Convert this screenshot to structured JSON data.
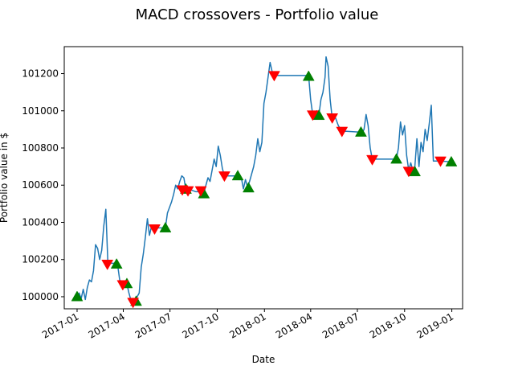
{
  "chart_data": {
    "type": "line",
    "title": "MACD crossovers - Portfolio value",
    "xlabel": "Date",
    "ylabel": "Portfolio value in $",
    "xlim": [
      "2016-12-07",
      "2019-01-22"
    ],
    "ylim": [
      99935,
      101345
    ],
    "grid": false,
    "x_ticks": [
      "2017-01-01",
      "2017-04-01",
      "2017-07-01",
      "2017-10-01",
      "2018-01-01",
      "2018-04-01",
      "2018-07-01",
      "2018-10-01",
      "2019-01-01"
    ],
    "x_tick_labels": [
      "2017-01",
      "2017-04",
      "2017-07",
      "2017-10",
      "2018-01",
      "2018-04",
      "2018-07",
      "2018-10",
      "2019-01"
    ],
    "y_ticks": [
      100000,
      100200,
      100400,
      100600,
      100800,
      101000,
      101200
    ],
    "y_tick_labels": [
      "100000",
      "100200",
      "100400",
      "100600",
      "100800",
      "101000",
      "101200"
    ],
    "series": [
      {
        "color": "#1f77b4",
        "points": [
          [
            "2017-01-01",
            100000
          ],
          [
            "2017-01-05",
            100020
          ],
          [
            "2017-01-09",
            99990
          ],
          [
            "2017-01-13",
            100040
          ],
          [
            "2017-01-17",
            99985
          ],
          [
            "2017-01-21",
            100050
          ],
          [
            "2017-01-25",
            100090
          ],
          [
            "2017-01-29",
            100080
          ],
          [
            "2017-02-02",
            100140
          ],
          [
            "2017-02-06",
            100280
          ],
          [
            "2017-02-10",
            100260
          ],
          [
            "2017-02-14",
            100200
          ],
          [
            "2017-02-18",
            100250
          ],
          [
            "2017-02-22",
            100380
          ],
          [
            "2017-02-26",
            100470
          ],
          [
            "2017-03-02",
            100180
          ],
          [
            "2017-03-10",
            100180
          ],
          [
            "2017-03-19",
            100180
          ],
          [
            "2017-03-21",
            100170
          ],
          [
            "2017-03-25",
            100090
          ],
          [
            "2017-03-31",
            100070
          ],
          [
            "2017-04-08",
            100070
          ],
          [
            "2017-04-12",
            100020
          ],
          [
            "2017-04-16",
            99980
          ],
          [
            "2017-04-20",
            99975
          ],
          [
            "2017-04-26",
            99975
          ],
          [
            "2017-04-28",
            100000
          ],
          [
            "2017-05-02",
            100020
          ],
          [
            "2017-05-06",
            100160
          ],
          [
            "2017-05-10",
            100230
          ],
          [
            "2017-05-14",
            100320
          ],
          [
            "2017-05-18",
            100420
          ],
          [
            "2017-05-22",
            100330
          ],
          [
            "2017-05-26",
            100380
          ],
          [
            "2017-06-01",
            100370
          ],
          [
            "2017-06-14",
            100370
          ],
          [
            "2017-06-22",
            100370
          ],
          [
            "2017-06-26",
            100450
          ],
          [
            "2017-06-30",
            100480
          ],
          [
            "2017-07-04",
            100510
          ],
          [
            "2017-07-08",
            100550
          ],
          [
            "2017-07-12",
            100600
          ],
          [
            "2017-07-16",
            100580
          ],
          [
            "2017-07-20",
            100620
          ],
          [
            "2017-07-24",
            100650
          ],
          [
            "2017-07-28",
            100640
          ],
          [
            "2017-08-01",
            100575
          ],
          [
            "2017-08-10",
            100575
          ],
          [
            "2017-08-20",
            100565
          ],
          [
            "2017-09-01",
            100565
          ],
          [
            "2017-09-05",
            100555
          ],
          [
            "2017-09-09",
            100600
          ],
          [
            "2017-09-13",
            100640
          ],
          [
            "2017-09-17",
            100620
          ],
          [
            "2017-09-21",
            100680
          ],
          [
            "2017-09-25",
            100740
          ],
          [
            "2017-09-29",
            100700
          ],
          [
            "2017-10-03",
            100810
          ],
          [
            "2017-10-07",
            100760
          ],
          [
            "2017-10-11",
            100690
          ],
          [
            "2017-10-15",
            100650
          ],
          [
            "2017-11-01",
            100650
          ],
          [
            "2017-11-10",
            100650
          ],
          [
            "2017-11-13",
            100630
          ],
          [
            "2017-11-17",
            100640
          ],
          [
            "2017-11-21",
            100580
          ],
          [
            "2017-11-25",
            100630
          ],
          [
            "2017-11-29",
            100590
          ],
          [
            "2017-12-03",
            100620
          ],
          [
            "2017-12-07",
            100660
          ],
          [
            "2017-12-11",
            100700
          ],
          [
            "2017-12-15",
            100760
          ],
          [
            "2017-12-19",
            100850
          ],
          [
            "2017-12-23",
            100780
          ],
          [
            "2017-12-27",
            100830
          ],
          [
            "2017-12-31",
            101040
          ],
          [
            "2018-01-04",
            101100
          ],
          [
            "2018-01-08",
            101180
          ],
          [
            "2018-01-12",
            101260
          ],
          [
            "2018-01-16",
            101210
          ],
          [
            "2018-01-20",
            101190
          ],
          [
            "2018-03-28",
            101190
          ],
          [
            "2018-04-01",
            101060
          ],
          [
            "2018-04-05",
            100980
          ],
          [
            "2018-04-09",
            100975
          ],
          [
            "2018-04-13",
            101000
          ],
          [
            "2018-04-17",
            100975
          ],
          [
            "2018-04-21",
            101060
          ],
          [
            "2018-04-25",
            101100
          ],
          [
            "2018-04-29",
            101180
          ],
          [
            "2018-05-01",
            101290
          ],
          [
            "2018-05-05",
            101240
          ],
          [
            "2018-05-09",
            101060
          ],
          [
            "2018-05-13",
            100960
          ],
          [
            "2018-05-19",
            100965
          ],
          [
            "2018-05-25",
            100920
          ],
          [
            "2018-06-01",
            100890
          ],
          [
            "2018-06-10",
            100890
          ],
          [
            "2018-07-08",
            100885
          ],
          [
            "2018-07-10",
            100880
          ],
          [
            "2018-07-14",
            100900
          ],
          [
            "2018-07-18",
            100980
          ],
          [
            "2018-07-22",
            100920
          ],
          [
            "2018-07-26",
            100800
          ],
          [
            "2018-07-30",
            100740
          ],
          [
            "2018-08-10",
            100740
          ],
          [
            "2018-09-01",
            100740
          ],
          [
            "2018-09-15",
            100740
          ],
          [
            "2018-09-19",
            100800
          ],
          [
            "2018-09-23",
            100940
          ],
          [
            "2018-09-27",
            100870
          ],
          [
            "2018-10-01",
            100920
          ],
          [
            "2018-10-05",
            100760
          ],
          [
            "2018-10-09",
            100680
          ],
          [
            "2018-10-13",
            100720
          ],
          [
            "2018-10-17",
            100680
          ],
          [
            "2018-10-21",
            100700
          ],
          [
            "2018-10-25",
            100850
          ],
          [
            "2018-10-29",
            100700
          ],
          [
            "2018-11-02",
            100830
          ],
          [
            "2018-11-06",
            100780
          ],
          [
            "2018-11-10",
            100900
          ],
          [
            "2018-11-14",
            100840
          ],
          [
            "2018-11-18",
            100930
          ],
          [
            "2018-11-22",
            101030
          ],
          [
            "2018-11-26",
            100730
          ],
          [
            "2018-12-10",
            100730
          ],
          [
            "2018-12-31",
            100725
          ]
        ]
      }
    ],
    "markers": [
      {
        "kind": "buy",
        "shape": "triangle-up",
        "color": "#008000",
        "points": [
          [
            "2017-01-01",
            100000
          ],
          [
            "2017-03-19",
            100175
          ],
          [
            "2017-04-08",
            100070
          ],
          [
            "2017-04-26",
            99975
          ],
          [
            "2017-06-22",
            100370
          ],
          [
            "2017-08-01",
            100578
          ],
          [
            "2017-09-05",
            100553
          ],
          [
            "2017-11-10",
            100650
          ],
          [
            "2017-12-01",
            100585
          ],
          [
            "2018-03-28",
            101185
          ],
          [
            "2018-04-17",
            100975
          ],
          [
            "2018-07-08",
            100885
          ],
          [
            "2018-09-15",
            100740
          ],
          [
            "2018-10-21",
            100672
          ],
          [
            "2018-12-31",
            100725
          ]
        ]
      },
      {
        "kind": "sell",
        "shape": "triangle-down",
        "color": "#ff0000",
        "points": [
          [
            "2017-03-01",
            100175
          ],
          [
            "2017-03-31",
            100065
          ],
          [
            "2017-04-20",
            99970
          ],
          [
            "2017-06-01",
            100365
          ],
          [
            "2017-07-25",
            100575
          ],
          [
            "2017-08-05",
            100570
          ],
          [
            "2017-08-30",
            100570
          ],
          [
            "2017-10-15",
            100650
          ],
          [
            "2018-01-20",
            101190
          ],
          [
            "2018-04-05",
            100978
          ],
          [
            "2018-05-13",
            100962
          ],
          [
            "2018-06-01",
            100890
          ],
          [
            "2018-07-30",
            100738
          ],
          [
            "2018-10-09",
            100675
          ],
          [
            "2018-12-10",
            100730
          ]
        ]
      }
    ]
  }
}
